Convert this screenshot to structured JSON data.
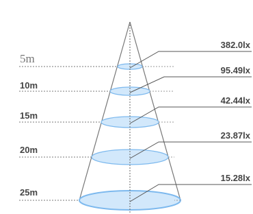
{
  "levels": [
    {
      "distance": "5m",
      "illuminance": "382.0lx"
    },
    {
      "distance": "10m",
      "illuminance": "95.49lx"
    },
    {
      "distance": "15m",
      "illuminance": "42.44lx"
    },
    {
      "distance": "20m",
      "illuminance": "23.87lx"
    },
    {
      "distance": "25m",
      "illuminance": "15.28lx"
    }
  ]
}
